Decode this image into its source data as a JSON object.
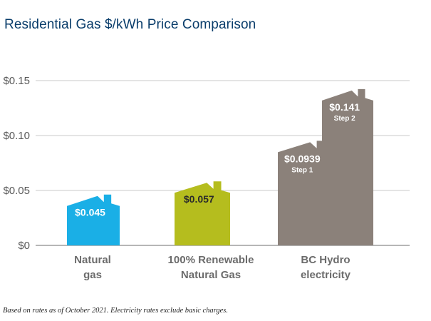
{
  "title": "Residential Gas $/kWh Price Comparison",
  "footnote": "Based on rates as of October 2021. Electricity rates exclude basic charges.",
  "chart_data": {
    "type": "bar",
    "title": "Residential Gas $/kWh Price Comparison",
    "ylim": [
      0,
      0.15
    ],
    "yticks": [
      0,
      0.05,
      0.1,
      0.15
    ],
    "ytick_labels": [
      "$0",
      "$0.05",
      "$0.10",
      "$0.15"
    ],
    "grid": true,
    "categories": [
      {
        "lines": [
          "Natural",
          "gas"
        ]
      },
      {
        "lines": [
          "100% Renewable",
          "Natural Gas"
        ]
      },
      {
        "lines": [
          "BC Hydro",
          "electricity"
        ]
      }
    ],
    "bars": [
      {
        "category": 0,
        "value": 0.045,
        "label": "$0.045",
        "sublabel": "",
        "color": "#1aafe6",
        "label_color": "#ffffff"
      },
      {
        "category": 1,
        "value": 0.057,
        "label": "$0.057",
        "sublabel": "",
        "color": "#b5bd1e",
        "label_color": "#2b2b2b"
      },
      {
        "category": 2,
        "value": 0.0939,
        "label": "$0.0939",
        "sublabel": "Step 1",
        "color": "#8b817a",
        "label_color": "#ffffff"
      },
      {
        "category": 2,
        "value": 0.141,
        "label": "$0.141",
        "sublabel": "Step 2",
        "color": "#8b817a",
        "label_color": "#ffffff"
      }
    ]
  }
}
